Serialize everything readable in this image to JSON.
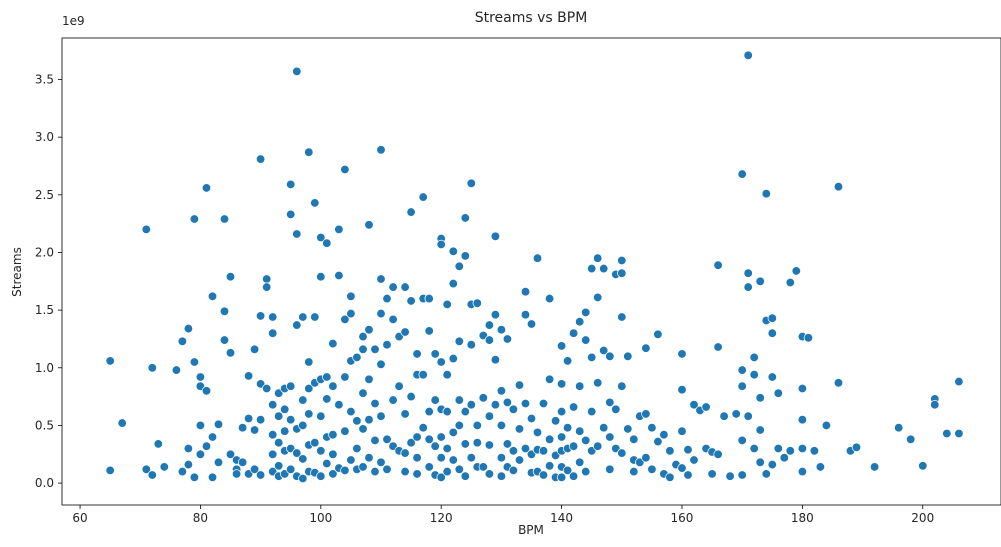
{
  "chart_data": {
    "type": "scatter",
    "title": "Streams vs BPM",
    "xlabel": "BPM",
    "ylabel": "Streams",
    "y_offset_label": "1e9",
    "xlim": [
      57,
      213
    ],
    "ylim": [
      -0.19,
      3.86
    ],
    "xticks": [
      60,
      80,
      100,
      120,
      140,
      160,
      180,
      200
    ],
    "yticks": [
      0.0,
      0.5,
      1.0,
      1.5,
      2.0,
      2.5,
      3.0,
      3.5
    ],
    "ytick_labels": [
      "0.0",
      "0.5",
      "1.0",
      "1.5",
      "2.0",
      "2.5",
      "3.0",
      "3.5"
    ],
    "grid": false,
    "color": "#1f77b4",
    "x": [
      65,
      65,
      67,
      71,
      71,
      72,
      72,
      73,
      74,
      76,
      77,
      77,
      78,
      78,
      78,
      79,
      79,
      79,
      80,
      80,
      80,
      80,
      81,
      81,
      81,
      82,
      82,
      82,
      83,
      83,
      84,
      84,
      84,
      85,
      85,
      85,
      86,
      86,
      86,
      87,
      87,
      88,
      88,
      88,
      89,
      89,
      89,
      90,
      90,
      90,
      90,
      90,
      91,
      91,
      91,
      92,
      92,
      92,
      92,
      92,
      92,
      93,
      93,
      93,
      93,
      93,
      94,
      94,
      94,
      94,
      94,
      95,
      95,
      95,
      95,
      95,
      95,
      96,
      96,
      96,
      96,
      96,
      96,
      97,
      97,
      97,
      97,
      97,
      98,
      98,
      98,
      98,
      98,
      98,
      99,
      99,
      99,
      99,
      99,
      100,
      100,
      100,
      100,
      100,
      100,
      101,
      101,
      101,
      101,
      101,
      102,
      102,
      102,
      102,
      102,
      103,
      103,
      103,
      103,
      104,
      104,
      104,
      104,
      104,
      105,
      105,
      105,
      105,
      105,
      106,
      106,
      106,
      106,
      107,
      107,
      107,
      107,
      107,
      108,
      108,
      108,
      108,
      108,
      109,
      109,
      109,
      109,
      110,
      110,
      110,
      110,
      110,
      110,
      111,
      111,
      111,
      111,
      112,
      112,
      112,
      112,
      113,
      113,
      113,
      114,
      114,
      114,
      114,
      114,
      115,
      115,
      115,
      115,
      116,
      116,
      116,
      116,
      116,
      117,
      117,
      117,
      117,
      118,
      118,
      118,
      118,
      118,
      119,
      119,
      119,
      119,
      120,
      120,
      120,
      120,
      120,
      120,
      120,
      121,
      121,
      121,
      121,
      121,
      122,
      122,
      122,
      122,
      122,
      123,
      123,
      123,
      123,
      123,
      124,
      124,
      124,
      124,
      124,
      125,
      125,
      125,
      125,
      125,
      126,
      126,
      126,
      126,
      127,
      127,
      127,
      128,
      128,
      128,
      128,
      128,
      129,
      129,
      129,
      129,
      130,
      130,
      130,
      130,
      130,
      131,
      131,
      131,
      131,
      132,
      132,
      132,
      133,
      133,
      133,
      134,
      134,
      134,
      134,
      135,
      135,
      135,
      135,
      136,
      136,
      136,
      136,
      137,
      137,
      137,
      138,
      138,
      138,
      138,
      139,
      139,
      139,
      140,
      140,
      140,
      140,
      140,
      140,
      140,
      141,
      141,
      141,
      141,
      142,
      142,
      142,
      142,
      143,
      143,
      143,
      143,
      144,
      144,
      144,
      144,
      145,
      145,
      145,
      145,
      146,
      146,
      146,
      146,
      147,
      147,
      147,
      148,
      148,
      148,
      148,
      149,
      149,
      149,
      150,
      150,
      150,
      150,
      150,
      151,
      151,
      152,
      152,
      152,
      153,
      153,
      154,
      154,
      154,
      155,
      155,
      156,
      156,
      157,
      157,
      158,
      158,
      159,
      160,
      160,
      160,
      160,
      161,
      161,
      162,
      162,
      163,
      164,
      164,
      165,
      165,
      166,
      166,
      166,
      167,
      168,
      169,
      170,
      170,
      170,
      170,
      170,
      171,
      171,
      171,
      171,
      172,
      172,
      172,
      173,
      173,
      173,
      173,
      174,
      174,
      174,
      175,
      175,
      175,
      175,
      176,
      176,
      177,
      178,
      178,
      179,
      180,
      180,
      180,
      180,
      180,
      181,
      182,
      183,
      184,
      186,
      186,
      188,
      189,
      192,
      196,
      198,
      200,
      202,
      202,
      204,
      206,
      206
    ],
    "y": [
      1.06,
      0.11,
      0.52,
      2.2,
      0.12,
      1.0,
      0.07,
      0.34,
      0.14,
      0.98,
      0.1,
      1.23,
      0.3,
      1.34,
      0.16,
      2.29,
      1.05,
      0.05,
      0.92,
      0.84,
      0.25,
      0.5,
      2.56,
      0.8,
      0.32,
      1.62,
      0.4,
      0.05,
      0.51,
      0.18,
      2.29,
      1.49,
      1.24,
      1.79,
      1.13,
      0.25,
      0.12,
      0.2,
      0.08,
      0.18,
      0.48,
      0.93,
      0.56,
      0.08,
      1.16,
      0.12,
      0.46,
      2.81,
      1.45,
      0.86,
      0.55,
      0.07,
      1.77,
      1.7,
      0.82,
      1.44,
      1.3,
      0.68,
      0.42,
      0.25,
      0.1,
      0.78,
      0.58,
      0.35,
      0.15,
      0.06,
      0.82,
      0.64,
      0.45,
      0.28,
      0.08,
      2.59,
      2.33,
      0.84,
      0.55,
      0.3,
      0.12,
      3.57,
      2.16,
      1.37,
      0.47,
      0.26,
      0.06,
      1.44,
      0.72,
      0.5,
      0.21,
      0.04,
      2.87,
      1.05,
      0.82,
      0.6,
      0.33,
      0.1,
      2.43,
      1.44,
      0.87,
      0.35,
      0.09,
      2.13,
      1.79,
      0.9,
      0.58,
      0.28,
      0.06,
      2.08,
      0.92,
      0.73,
      0.4,
      0.17,
      1.21,
      0.84,
      0.42,
      0.25,
      0.08,
      2.2,
      1.8,
      0.68,
      0.13,
      2.72,
      1.42,
      0.92,
      0.45,
      0.11,
      1.62,
      1.47,
      1.06,
      0.62,
      0.2,
      1.09,
      0.54,
      0.3,
      0.12,
      1.27,
      1.16,
      0.78,
      0.47,
      0.14,
      2.24,
      1.33,
      0.9,
      0.55,
      0.22,
      1.16,
      0.69,
      0.37,
      0.1,
      2.89,
      1.77,
      1.47,
      1.03,
      0.58,
      0.18,
      1.6,
      1.2,
      0.38,
      0.12,
      1.7,
      1.42,
      0.72,
      0.32,
      1.27,
      0.84,
      0.28,
      1.7,
      1.31,
      0.6,
      0.26,
      0.1,
      2.35,
      1.58,
      0.75,
      0.35,
      1.12,
      0.94,
      0.4,
      0.22,
      0.08,
      2.48,
      1.6,
      0.94,
      0.48,
      1.6,
      1.32,
      0.62,
      0.38,
      0.14,
      1.12,
      0.72,
      0.32,
      0.07,
      2.12,
      2.07,
      1.05,
      0.64,
      0.4,
      0.22,
      0.05,
      1.55,
      0.94,
      0.62,
      0.3,
      0.1,
      2.01,
      1.73,
      1.08,
      0.44,
      0.2,
      1.88,
      1.23,
      0.72,
      0.5,
      0.12,
      2.3,
      1.97,
      0.62,
      0.34,
      0.06,
      2.6,
      1.55,
      1.2,
      0.68,
      0.22,
      1.56,
      0.5,
      0.35,
      0.14,
      1.28,
      0.74,
      0.14,
      1.37,
      1.24,
      0.58,
      0.33,
      0.08,
      2.14,
      1.46,
      1.07,
      0.68,
      1.33,
      0.8,
      0.5,
      0.22,
      0.06,
      1.25,
      0.7,
      0.34,
      0.14,
      0.64,
      0.28,
      0.11,
      0.85,
      0.47,
      0.2,
      1.66,
      1.46,
      0.69,
      0.3,
      1.38,
      0.56,
      0.25,
      0.09,
      1.95,
      0.44,
      0.29,
      0.1,
      0.69,
      0.28,
      0.07,
      1.6,
      0.9,
      0.38,
      0.15,
      0.54,
      0.24,
      0.05,
      1.19,
      0.86,
      0.62,
      0.4,
      0.28,
      0.14,
      0.05,
      1.06,
      0.48,
      0.3,
      0.11,
      1.3,
      0.66,
      0.32,
      0.06,
      1.4,
      0.84,
      0.45,
      0.18,
      1.48,
      1.24,
      0.37,
      0.1,
      1.86,
      1.09,
      0.62,
      0.28,
      1.95,
      1.61,
      0.87,
      0.32,
      1.86,
      1.15,
      0.48,
      1.1,
      0.7,
      0.4,
      0.12,
      1.81,
      0.64,
      0.3,
      1.93,
      1.82,
      1.44,
      0.84,
      0.26,
      1.1,
      0.47,
      0.38,
      0.2,
      0.1,
      0.58,
      0.18,
      0.6,
      1.17,
      0.22,
      0.48,
      0.12,
      1.29,
      0.36,
      0.08,
      0.42,
      0.28,
      0.05,
      0.16,
      1.12,
      0.81,
      0.45,
      0.13,
      0.29,
      0.07,
      0.68,
      0.2,
      0.63,
      0.66,
      0.3,
      0.27,
      0.08,
      1.89,
      1.18,
      0.25,
      0.58,
      0.06,
      0.6,
      2.68,
      0.98,
      0.84,
      0.37,
      0.07,
      3.71,
      1.82,
      1.7,
      0.58,
      1.09,
      0.94,
      0.3,
      1.75,
      0.74,
      0.46,
      0.18,
      2.51,
      1.41,
      0.08,
      1.43,
      1.3,
      0.92,
      0.16,
      0.78,
      0.3,
      0.22,
      1.74,
      0.28,
      1.84,
      1.27,
      0.82,
      0.55,
      0.3,
      0.1,
      1.26,
      0.28,
      0.14,
      0.5,
      2.57,
      0.87,
      0.28,
      0.31,
      0.14,
      0.48,
      0.38,
      0.15,
      0.73,
      0.68,
      0.43,
      0.88,
      0.43
    ]
  }
}
